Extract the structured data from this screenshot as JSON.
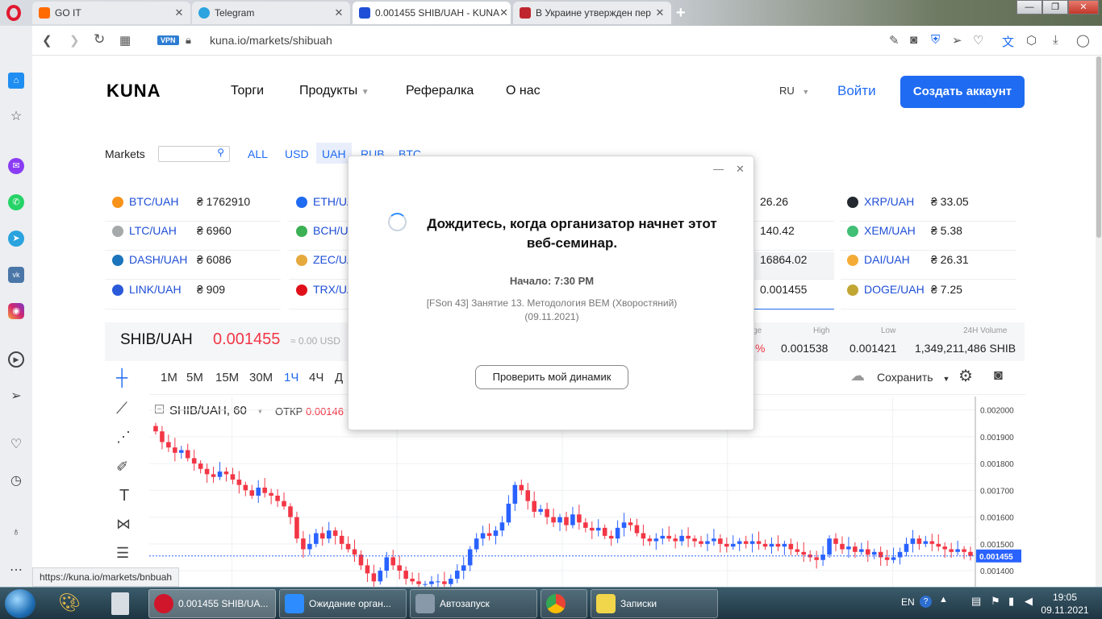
{
  "browser": {
    "tabs": [
      {
        "label": "GO IT",
        "color": "#ff6a00"
      },
      {
        "label": "Telegram",
        "color": "#2aa3df"
      },
      {
        "label": "0.001455 SHIB/UAH - KUNA",
        "color": "#1f4fd6"
      },
      {
        "label": "В Украине утвержден пер",
        "color": "#c0262d"
      }
    ],
    "new_tab_icon": "plus-icon",
    "address": {
      "vpn_badge": "VPN",
      "url": "kuna.io/markets/shibuah"
    },
    "status_url": "https://kuna.io/markets/bnbuah"
  },
  "site": {
    "logo": "KUNA",
    "nav": [
      "Торги",
      "Продукты",
      "Рефералка",
      "О нас"
    ],
    "lang": "RU",
    "login": "Войти",
    "signup": "Создать аккаунт",
    "brand_color": "#1f6bf2"
  },
  "markets": {
    "label": "Markets",
    "search_placeholder": "",
    "filters": [
      "ALL",
      "USD",
      "UAH",
      "RUB",
      "BTC"
    ],
    "active_filter": "UAH",
    "col1": [
      {
        "pair": "BTC/UAH",
        "value": "₴ 1762910",
        "color": "#f7931a"
      },
      {
        "pair": "LTC/UAH",
        "value": "₴ 6960",
        "color": "#a6a9aa"
      },
      {
        "pair": "DASH/UAH",
        "value": "₴ 6086",
        "color": "#1c75bc"
      },
      {
        "pair": "LINK/UAH",
        "value": "₴ 909",
        "color": "#2a5ada"
      }
    ],
    "col2": [
      {
        "pair": "ETH/UA",
        "color": "#1f6bf2"
      },
      {
        "pair": "BCH/UA",
        "color": "#3cb054"
      },
      {
        "pair": "ZEC/UA",
        "color": "#e5a93d"
      },
      {
        "pair": "TRX/UA",
        "color": "#e0101a"
      }
    ],
    "col3": [
      "26.26",
      "140.42",
      "16864.02",
      "0.001455"
    ],
    "col4": [
      {
        "pair": "XRP/UAH",
        "value": "₴ 33.05",
        "color": "#23292f"
      },
      {
        "pair": "XEM/UAH",
        "value": "₴ 5.38",
        "color": "#41bf76"
      },
      {
        "pair": "DAI/UAH",
        "value": "₴ 26.31",
        "color": "#f5ac37"
      },
      {
        "pair": "DOGE/UAH",
        "value": "₴ 7.25",
        "color": "#c2a633"
      }
    ]
  },
  "ticker": {
    "pair": "SHIB/UAH",
    "price": "0.001455",
    "usd": "≈ 0.00 USD",
    "change_label": "ge",
    "change_value": "%",
    "high_label": "High",
    "high": "0.001538",
    "low_label": "Low",
    "low": "0.001421",
    "vol_label": "24H Volume",
    "vol": "1,349,211,486 SHIB"
  },
  "chart_toolbar": {
    "intervals": [
      "1M",
      "5M",
      "15M",
      "30M",
      "1Ч",
      "4Ч",
      "Д"
    ],
    "active": "1Ч",
    "save": "Сохранить",
    "symbol": "SHIB/UAH, 60",
    "open_label": "ОТКР",
    "open_value": "0.00146"
  },
  "chart_data": {
    "type": "candlestick",
    "title": "SHIB/UAH, 60",
    "y_ticks": [
      "0.002000",
      "0.001900",
      "0.001800",
      "0.001700",
      "0.001600",
      "0.001500",
      "0.001400"
    ],
    "ylim": [
      0.00134,
      0.00205
    ],
    "last_price": "0.001455",
    "last_value": 0.001455,
    "up_color": "#2962ff",
    "down_color": "#f23645",
    "close": [
      0.00192,
      0.00188,
      0.00186,
      0.00184,
      0.00185,
      0.00182,
      0.0018,
      0.00178,
      0.00176,
      0.00175,
      0.00177,
      0.00176,
      0.00174,
      0.00172,
      0.0017,
      0.00168,
      0.00171,
      0.00169,
      0.00168,
      0.00166,
      0.00164,
      0.0016,
      0.00152,
      0.00148,
      0.0015,
      0.00154,
      0.00152,
      0.00155,
      0.00153,
      0.0015,
      0.00148,
      0.00146,
      0.00142,
      0.00139,
      0.00136,
      0.0014,
      0.00145,
      0.00142,
      0.0014,
      0.00137,
      0.00136,
      0.00135,
      0.00135,
      0.00136,
      0.00136,
      0.00135,
      0.00137,
      0.0014,
      0.00142,
      0.00148,
      0.00152,
      0.00154,
      0.00153,
      0.00155,
      0.00158,
      0.00165,
      0.00172,
      0.0017,
      0.00166,
      0.00162,
      0.00163,
      0.0016,
      0.00158,
      0.0016,
      0.00157,
      0.00161,
      0.00158,
      0.00156,
      0.00155,
      0.00156,
      0.00153,
      0.00152,
      0.00156,
      0.00158,
      0.00157,
      0.00154,
      0.00152,
      0.00151,
      0.00152,
      0.00153,
      0.00152,
      0.00151,
      0.00153,
      0.00152,
      0.00151,
      0.0015,
      0.00151,
      0.00152,
      0.0015,
      0.00149,
      0.0015,
      0.00151,
      0.0015,
      0.00151,
      0.0015,
      0.00149,
      0.0015,
      0.00149,
      0.0015,
      0.00148,
      0.00147,
      0.00146,
      0.00145,
      0.00144,
      0.00146,
      0.00152,
      0.0015,
      0.00148,
      0.00149,
      0.00147,
      0.00148,
      0.00146,
      0.00147,
      0.00145,
      0.00144,
      0.00145,
      0.00147,
      0.0015,
      0.00152,
      0.0015,
      0.00151,
      0.0015,
      0.00149,
      0.00148,
      0.00147,
      0.00148,
      0.00147,
      0.001455
    ]
  },
  "modal": {
    "title": "Дождитесь, когда организатор начнет этот веб-семинар.",
    "start": "Начало: 7:30 PM",
    "event": "[FSon 43] Занятие 13. Методология BEM (Хворостяний)",
    "date": "(09.11.2021)",
    "button": "Проверить мой динамик"
  },
  "taskbar": {
    "items": [
      {
        "label": "0.001455 SHIB/UA...",
        "color": "#d0162a"
      },
      {
        "label": "Ожидание орган...",
        "color": "#2d8cff"
      },
      {
        "label": "Автозапуск",
        "color": "#8899aa"
      },
      {
        "label": "",
        "color": "#34a853"
      },
      {
        "label": "Записки",
        "color": "#f1d54a"
      }
    ],
    "lang": "EN",
    "time": "19:05",
    "date": "09.11.2021"
  }
}
